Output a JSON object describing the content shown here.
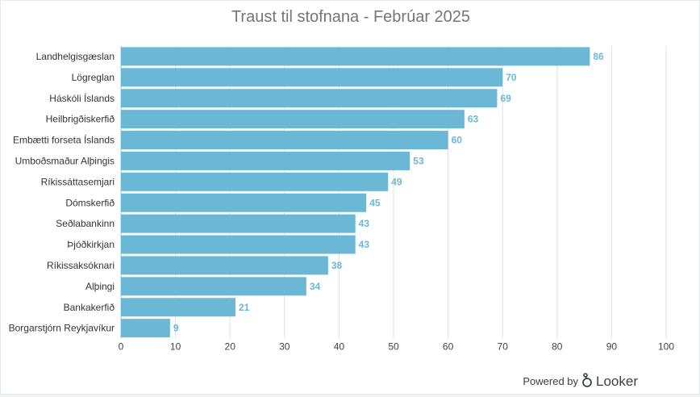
{
  "chart_data": {
    "type": "bar",
    "orientation": "horizontal",
    "title": "Traust til stofnana - Febrúar 2025",
    "categories": [
      "Landhelgisgæslan",
      "Lögreglan",
      "Háskóli Íslands",
      "Heilbrigðiskerfið",
      "Embætti forseta Íslands",
      "Umboðsmaður Alþingis",
      "Ríkissáttasemjari",
      "Dómskerfið",
      "Seðlabankinn",
      "Þjóðkirkjan",
      "Ríkissaksóknari",
      "Alþingi",
      "Bankakerfið",
      "Borgarstjórn Reykjavíkur"
    ],
    "values": [
      86,
      70,
      69,
      63,
      60,
      53,
      49,
      45,
      43,
      43,
      38,
      34,
      21,
      9
    ],
    "xlim": [
      0,
      100
    ],
    "xticks": [
      0,
      10,
      20,
      30,
      40,
      50,
      60,
      70,
      80,
      90,
      100
    ],
    "grid": true,
    "data_labels": true,
    "bar_color": "#6bb8d6",
    "label_color": "#6bb8d6"
  },
  "footer": {
    "powered_by": "Powered by",
    "brand": "Looker"
  }
}
